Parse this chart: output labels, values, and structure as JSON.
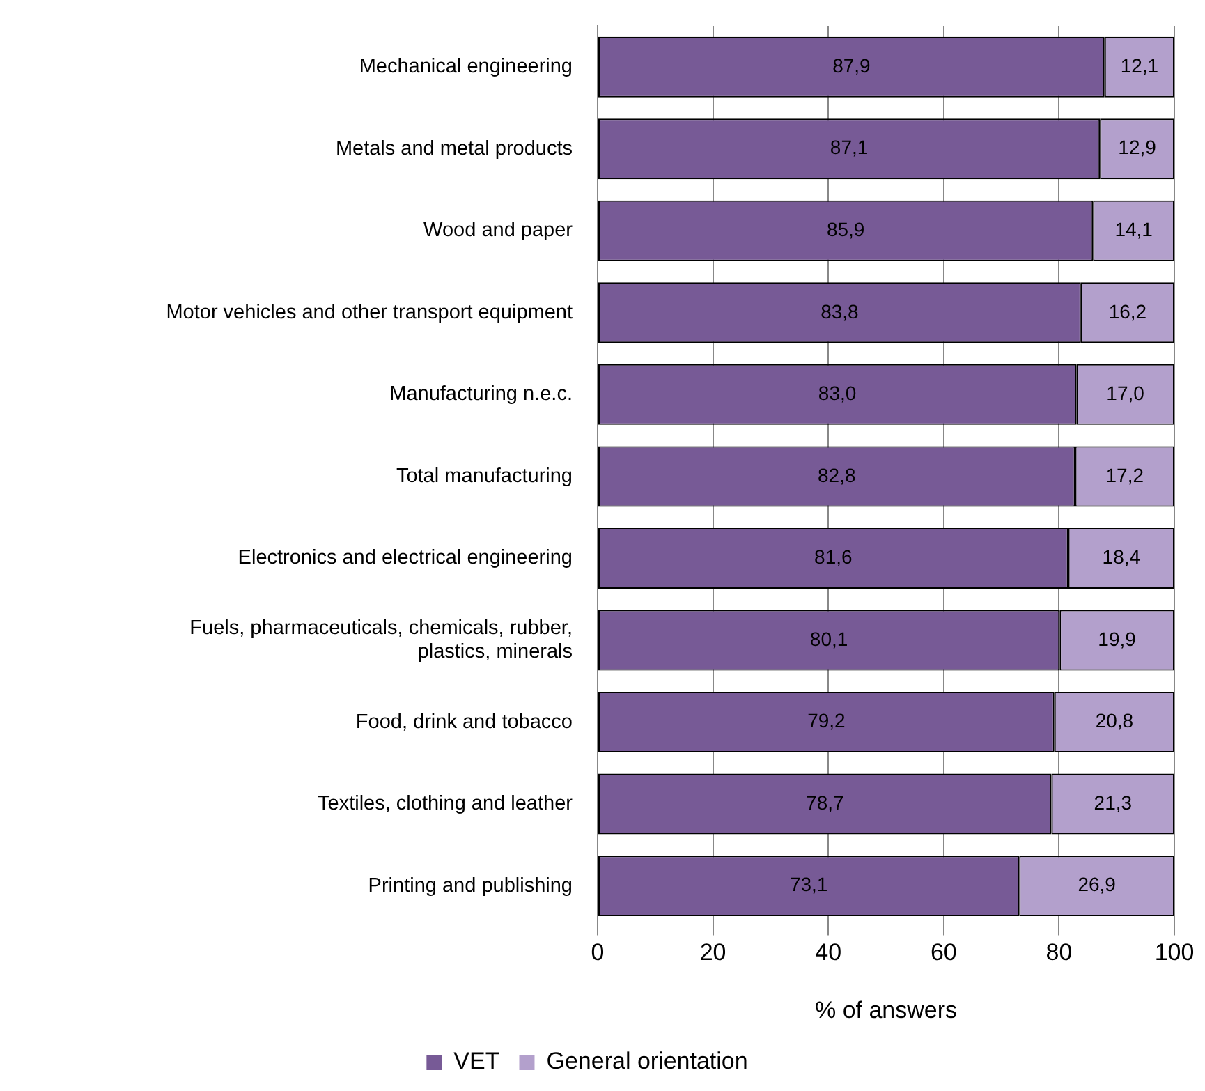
{
  "chart_data": {
    "type": "bar",
    "orientation": "horizontal",
    "stacked": true,
    "categories": [
      "Mechanical engineering",
      "Metals and metal products",
      "Wood and paper",
      "Motor vehicles and other transport equipment",
      "Manufacturing n.e.c.",
      "Total manufacturing",
      "Electronics and electrical engineering",
      "Fuels, pharmaceuticals, chemicals, rubber, plastics, minerals",
      "Food, drink and tobacco",
      "Textiles, clothing and leather",
      "Printing and publishing"
    ],
    "series": [
      {
        "name": "VET",
        "color": "#775a96",
        "values": [
          87.9,
          87.1,
          85.9,
          83.8,
          83.0,
          82.8,
          81.6,
          80.1,
          79.2,
          78.7,
          73.1
        ],
        "value_labels": [
          "87,9",
          "87,1",
          "85,9",
          "83,8",
          "83,0",
          "82,8",
          "81,6",
          "80,1",
          "79,2",
          "78,7",
          "73,1"
        ]
      },
      {
        "name": "General orientation",
        "color": "#b3a0cc",
        "values": [
          12.1,
          12.9,
          14.1,
          16.2,
          17.0,
          17.2,
          18.4,
          19.9,
          20.8,
          21.3,
          26.9
        ],
        "value_labels": [
          "12,1",
          "12,9",
          "14,1",
          "16,2",
          "17,0",
          "17,2",
          "18,4",
          "19,9",
          "20,8",
          "21,3",
          "26,9"
        ]
      }
    ],
    "xlabel": "% of answers",
    "xlim": [
      0,
      100
    ],
    "xticks": [
      0,
      20,
      40,
      60,
      80,
      100
    ],
    "grid": "x",
    "legend": "bottom"
  }
}
